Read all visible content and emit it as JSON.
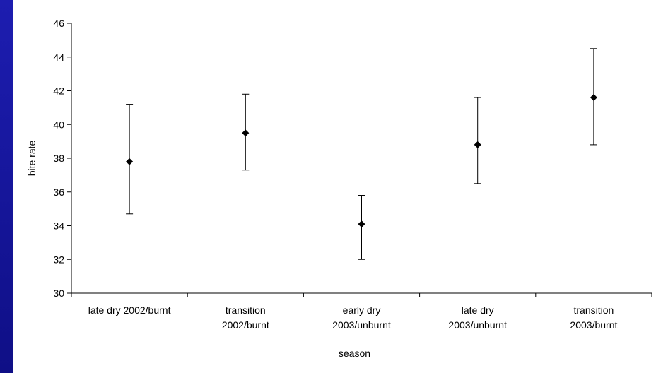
{
  "colors": {
    "frame": "#15159a",
    "panel": "#ffffff",
    "ink": "#000000"
  },
  "chart_data": {
    "type": "scatter",
    "title": "",
    "xlabel": "season",
    "ylabel": "bite rate",
    "ylim": [
      30,
      46
    ],
    "yticks": [
      30,
      32,
      34,
      36,
      38,
      40,
      42,
      44,
      46
    ],
    "grid": false,
    "legend": "none",
    "categories": [
      [
        "late dry 2002/burnt"
      ],
      [
        "transition",
        "2002/burnt"
      ],
      [
        "early dry",
        "2003/unburnt"
      ],
      [
        "late dry",
        "2003/unburnt"
      ],
      [
        "transition",
        "2003/burnt"
      ]
    ],
    "series": [
      {
        "values": [
          37.8,
          39.5,
          34.1,
          38.8,
          41.6
        ],
        "error_low": [
          34.7,
          37.3,
          32.0,
          36.5,
          38.8
        ],
        "error_high": [
          41.2,
          41.8,
          35.8,
          41.6,
          44.5
        ]
      }
    ]
  }
}
